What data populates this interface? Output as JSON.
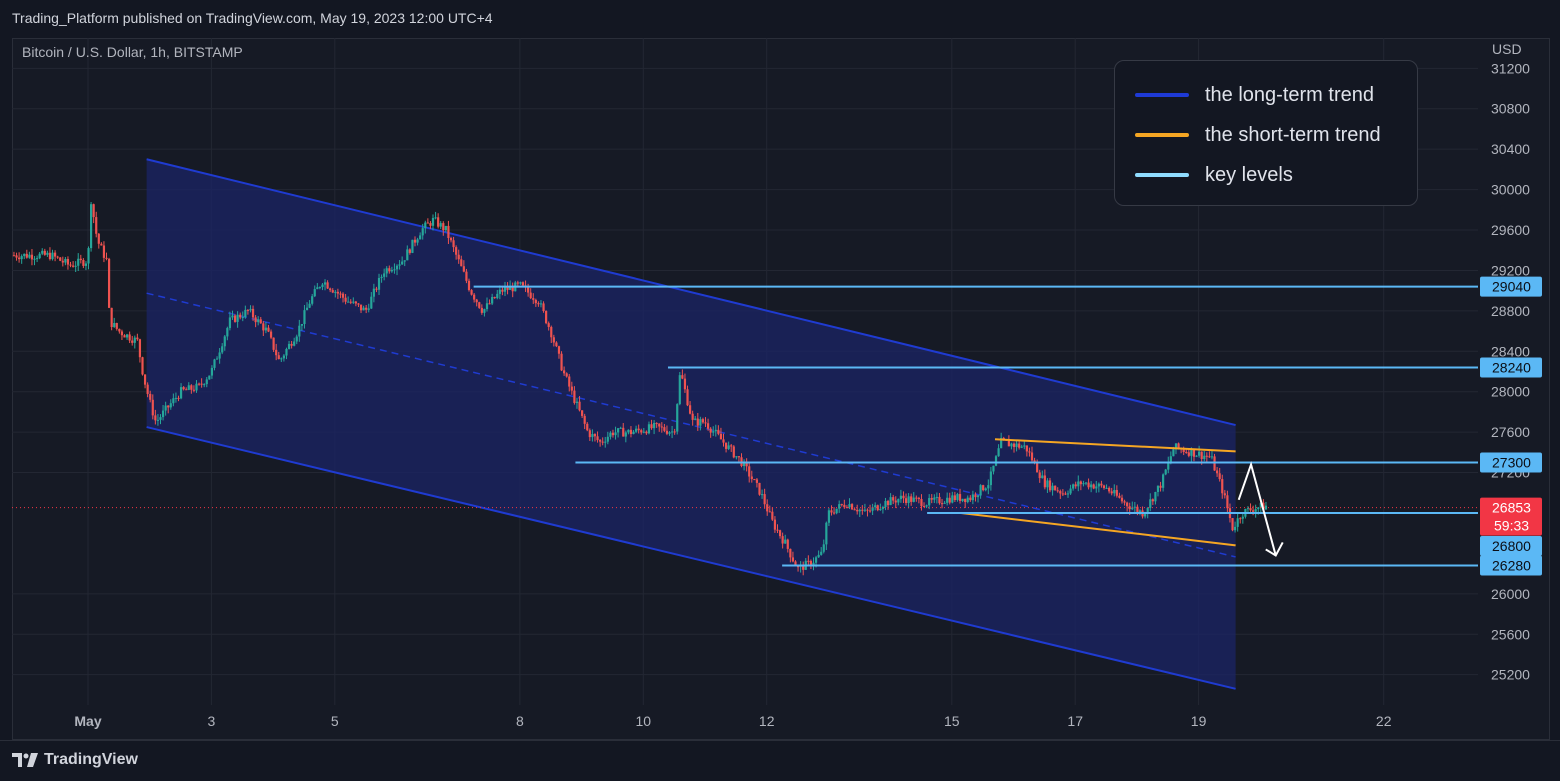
{
  "header": {
    "published": "Trading_Platform published on TradingView.com, May 19, 2023 12:00 UTC+4",
    "symbol": "Bitcoin / U.S. Dollar, 1h, BITSTAMP"
  },
  "footer": {
    "brand": "TradingView"
  },
  "legend": [
    {
      "label": "the long-term trend",
      "color": "#1e3ad6"
    },
    {
      "label": "the short-term trend",
      "color": "#f5a623"
    },
    {
      "label": "key levels",
      "color": "#8fdcff"
    }
  ],
  "colors": {
    "up": "#26a69a",
    "down": "#ef5350",
    "channel_fill": "#1b2466",
    "channel_line": "#1f3bd1",
    "short_trend": "#f5a623",
    "key_level": "#5bb8f5",
    "price_label": "#f23645"
  },
  "chart_data": {
    "type": "candlestick",
    "currency_label": "USD",
    "ylim": [
      24900,
      31500
    ],
    "y_ticks": [
      "31200",
      "30800",
      "30400",
      "30000",
      "29600",
      "29200",
      "28800",
      "28400",
      "28000",
      "27600",
      "27200",
      "26000",
      "25600",
      "25200"
    ],
    "x_ticks": [
      "May",
      "3",
      "5",
      "8",
      "10",
      "12",
      "15",
      "17",
      "19",
      "22"
    ],
    "x_tick_index": [
      0,
      2,
      4,
      7,
      9,
      11,
      14,
      16,
      18,
      21
    ],
    "last_price": {
      "value": "26853",
      "countdown": "59:33",
      "y": 26853
    },
    "key_levels": [
      {
        "label": "29040",
        "y": 29040,
        "from_day": 6.25
      },
      {
        "label": "28240",
        "y": 28240,
        "from_day": 9.4
      },
      {
        "label": "27300",
        "y": 27300,
        "from_day": 7.9
      },
      {
        "label": "26800",
        "y": 26800,
        "from_day": 13.6
      },
      {
        "label": "26280",
        "y": 26280,
        "from_day": 11.25
      }
    ],
    "price_path": [
      [
        -0.6,
        29350
      ],
      [
        -0.3,
        29250
      ],
      [
        0,
        29300
      ],
      [
        0.05,
        29900
      ],
      [
        0.15,
        29500
      ],
      [
        0.3,
        29300
      ],
      [
        0.35,
        28700
      ],
      [
        0.5,
        28600
      ],
      [
        0.8,
        28500
      ],
      [
        0.9,
        28150
      ],
      [
        1.0,
        27900
      ],
      [
        1.1,
        27700
      ],
      [
        1.5,
        28000
      ],
      [
        1.8,
        28050
      ],
      [
        2.0,
        28200
      ],
      [
        2.3,
        28700
      ],
      [
        2.6,
        28800
      ],
      [
        2.9,
        28600
      ],
      [
        3.1,
        28300
      ],
      [
        3.4,
        28600
      ],
      [
        3.6,
        28900
      ],
      [
        3.8,
        29100
      ],
      [
        4.0,
        29000
      ],
      [
        4.2,
        28900
      ],
      [
        4.5,
        28800
      ],
      [
        4.8,
        29200
      ],
      [
        5.1,
        29300
      ],
      [
        5.4,
        29600
      ],
      [
        5.6,
        29700
      ],
      [
        5.8,
        29600
      ],
      [
        6.0,
        29300
      ],
      [
        6.2,
        29000
      ],
      [
        6.4,
        28800
      ],
      [
        6.7,
        29000
      ],
      [
        7.0,
        29050
      ],
      [
        7.3,
        28900
      ],
      [
        7.5,
        28600
      ],
      [
        7.7,
        28200
      ],
      [
        7.9,
        27900
      ],
      [
        8.1,
        27600
      ],
      [
        8.3,
        27500
      ],
      [
        8.5,
        27600
      ],
      [
        8.8,
        27600
      ],
      [
        9.2,
        27650
      ],
      [
        9.5,
        27600
      ],
      [
        9.6,
        28200
      ],
      [
        9.8,
        27700
      ],
      [
        10.0,
        27700
      ],
      [
        10.3,
        27500
      ],
      [
        10.6,
        27300
      ],
      [
        10.9,
        27000
      ],
      [
        11.1,
        26700
      ],
      [
        11.3,
        26500
      ],
      [
        11.5,
        26250
      ],
      [
        11.7,
        26300
      ],
      [
        11.9,
        26400
      ],
      [
        12.0,
        26800
      ],
      [
        12.3,
        26900
      ],
      [
        12.6,
        26800
      ],
      [
        12.9,
        26900
      ],
      [
        13.2,
        26950
      ],
      [
        13.6,
        26900
      ],
      [
        14.0,
        26950
      ],
      [
        14.3,
        26950
      ],
      [
        14.6,
        27100
      ],
      [
        14.8,
        27500
      ],
      [
        15.2,
        27450
      ],
      [
        15.5,
        27100
      ],
      [
        15.8,
        27000
      ],
      [
        16.1,
        27100
      ],
      [
        16.5,
        27050
      ],
      [
        16.8,
        26900
      ],
      [
        17.1,
        26800
      ],
      [
        17.4,
        27100
      ],
      [
        17.6,
        27450
      ],
      [
        17.9,
        27400
      ],
      [
        18.2,
        27350
      ],
      [
        18.4,
        27000
      ],
      [
        18.55,
        26650
      ],
      [
        18.7,
        26800
      ],
      [
        18.9,
        26850
      ],
      [
        19.1,
        26870
      ]
    ]
  }
}
